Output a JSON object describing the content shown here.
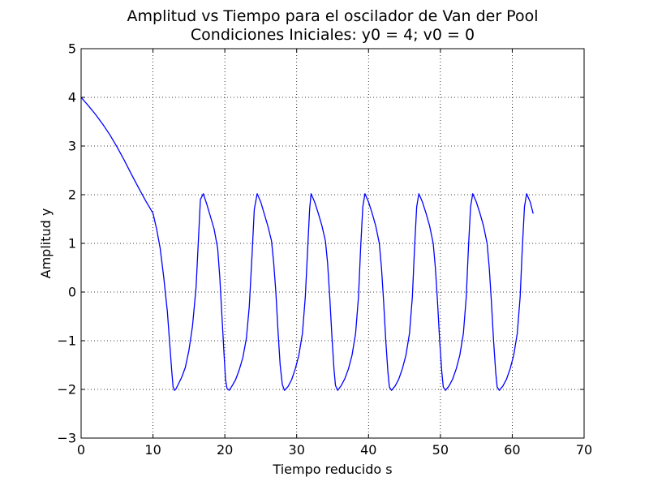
{
  "chart_data": {
    "type": "line",
    "title": "Amplitud vs Tiempo para el oscilador de Van der Pool",
    "subtitle": "Condiciones Iniciales: y0 = 4; v0 = 0",
    "xlabel": "Tiempo reducido s",
    "ylabel": "Amplitud y",
    "xlim": [
      0,
      70
    ],
    "ylim": [
      -3,
      5
    ],
    "xticks": [
      0,
      10,
      20,
      30,
      40,
      50,
      60,
      70
    ],
    "yticks": [
      -3,
      -2,
      -1,
      0,
      1,
      2,
      3,
      4,
      5
    ],
    "xtick_labels": [
      "0",
      "10",
      "20",
      "30",
      "40",
      "50",
      "60",
      "70"
    ],
    "ytick_labels": [
      "−3",
      "−2",
      "−1",
      "0",
      "1",
      "2",
      "3",
      "4",
      "5"
    ],
    "grid": true,
    "series": [
      {
        "color": "#0000ff",
        "x": [
          0,
          1,
          2,
          3,
          4,
          5,
          6,
          7,
          8,
          9,
          10,
          10.5,
          11,
          11.5,
          12,
          12.3,
          12.6,
          12.8,
          13.0,
          13.2,
          13.5,
          14.0,
          14.5,
          15.0,
          15.5,
          16.0,
          16.3,
          16.6,
          17.0,
          17.5,
          18.0,
          18.5,
          19.0,
          19.3,
          19.6,
          19.9,
          20.1,
          20.3,
          20.6,
          21.0,
          21.5,
          22.0,
          22.5,
          23.0,
          23.4,
          23.8,
          24.1,
          24.5,
          25.0,
          25.5,
          26.0,
          26.5,
          26.8,
          27.1,
          27.4,
          27.7,
          28.0,
          28.3,
          28.8,
          29.3,
          29.8,
          30.3,
          30.8,
          31.2,
          31.5,
          31.8,
          32.0,
          32.5,
          33.0,
          33.5,
          34.0,
          34.3,
          34.6,
          34.9,
          35.2,
          35.4,
          35.7,
          36.2,
          36.7,
          37.2,
          37.7,
          38.2,
          38.6,
          38.9,
          39.2,
          39.5,
          40.0,
          40.5,
          41.0,
          41.5,
          41.8,
          42.1,
          42.4,
          42.7,
          42.9,
          43.2,
          43.7,
          44.2,
          44.7,
          45.2,
          45.7,
          46.1,
          46.4,
          46.7,
          47.0,
          47.5,
          48.0,
          48.5,
          49.0,
          49.3,
          49.6,
          49.9,
          50.2,
          50.4,
          50.7,
          51.2,
          51.7,
          52.2,
          52.7,
          53.2,
          53.6,
          53.9,
          54.2,
          54.5,
          55.0,
          55.5,
          56.0,
          56.5,
          56.8,
          57.1,
          57.4,
          57.7,
          57.9,
          58.2,
          58.7,
          59.2,
          59.7,
          60.2,
          60.7,
          61.1,
          61.4,
          61.7,
          62.0,
          62.5,
          62.9
        ],
        "y": [
          4.0,
          3.83,
          3.65,
          3.45,
          3.23,
          2.98,
          2.71,
          2.42,
          2.14,
          1.87,
          1.62,
          1.3,
          0.9,
          0.3,
          -0.4,
          -1.0,
          -1.6,
          -1.95,
          -2.02,
          -1.99,
          -1.9,
          -1.75,
          -1.55,
          -1.2,
          -0.7,
          0.1,
          1.0,
          1.9,
          2.02,
          1.8,
          1.55,
          1.3,
          0.9,
          0.3,
          -0.5,
          -1.3,
          -1.8,
          -1.98,
          -2.02,
          -1.93,
          -1.8,
          -1.6,
          -1.35,
          -0.95,
          -0.3,
          0.8,
          1.7,
          2.02,
          1.85,
          1.6,
          1.35,
          1.05,
          0.6,
          0.0,
          -0.8,
          -1.5,
          -1.9,
          -2.02,
          -1.94,
          -1.8,
          -1.58,
          -1.3,
          -0.85,
          -0.1,
          0.8,
          1.7,
          2.02,
          1.85,
          1.62,
          1.37,
          1.05,
          0.6,
          -0.1,
          -0.9,
          -1.6,
          -1.92,
          -2.02,
          -1.92,
          -1.78,
          -1.58,
          -1.3,
          -0.85,
          -0.1,
          0.9,
          1.75,
          2.02,
          1.85,
          1.62,
          1.36,
          1.0,
          0.5,
          -0.2,
          -1.0,
          -1.65,
          -1.95,
          -2.02,
          -1.93,
          -1.79,
          -1.58,
          -1.3,
          -0.85,
          -0.1,
          0.9,
          1.75,
          2.02,
          1.85,
          1.62,
          1.36,
          1.0,
          0.5,
          -0.2,
          -1.0,
          -1.65,
          -1.95,
          -2.02,
          -1.93,
          -1.79,
          -1.58,
          -1.3,
          -0.85,
          -0.1,
          0.9,
          1.75,
          2.02,
          1.85,
          1.62,
          1.36,
          1.0,
          0.5,
          -0.2,
          -1.0,
          -1.65,
          -1.95,
          -2.02,
          -1.93,
          -1.79,
          -1.58,
          -1.3,
          -0.85,
          -0.1,
          0.9,
          1.75,
          2.02,
          1.85,
          1.62
        ]
      }
    ]
  }
}
